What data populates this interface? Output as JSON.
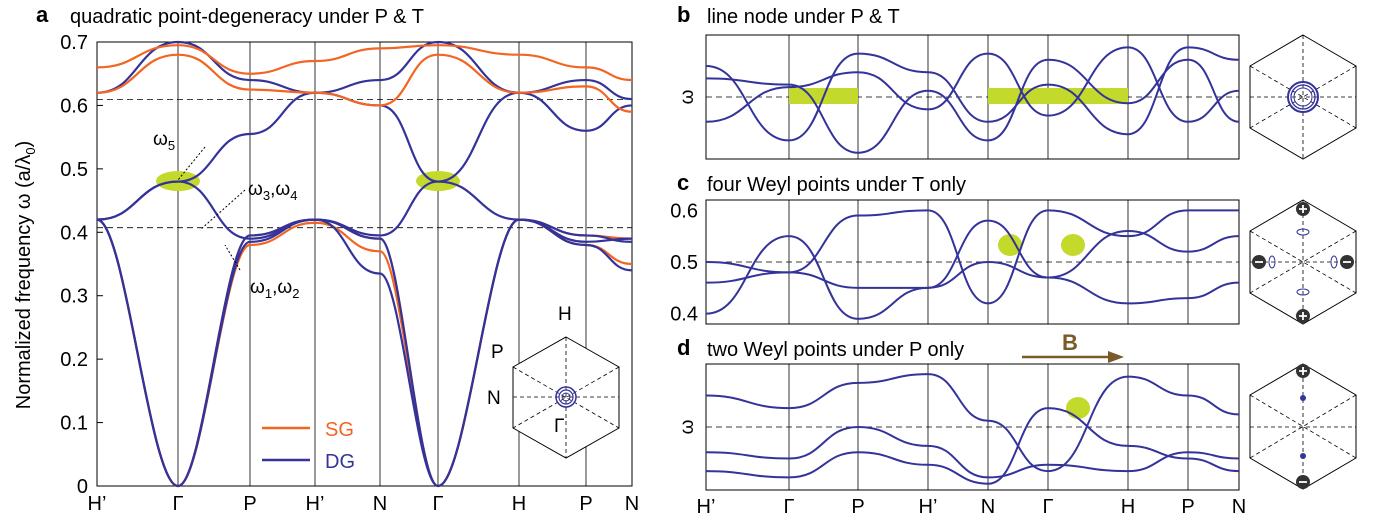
{
  "colors": {
    "sg": "#f26522",
    "dg": "#33339a",
    "highlight": "#c3d92b",
    "arrow": "#7a5a28"
  },
  "labels": {
    "a": "a",
    "b": "b",
    "c": "c",
    "d": "d",
    "title_a": "quadratic point-degeneracy under P & T",
    "title_b": "line node under P & T",
    "title_c": "four Weyl points under T only",
    "title_d": "two Weyl points under P only",
    "ylabel_a": "Normalized frequency ω (a/λ",
    "ylabel_a_sub": "0",
    "ylabel_a_close": ")",
    "omega": "ω",
    "omega5": "ω",
    "omega5_sub": "5",
    "omega34_a": "ω",
    "omega34_sub1": "3",
    "omega34_comma": ",ω",
    "omega34_sub2": "4",
    "omega12_a": "ω",
    "omega12_sub1": "1",
    "omega12_comma": ",ω",
    "omega12_sub2": "2",
    "legend_sg": "SG",
    "legend_dg": "DG",
    "bz_H": "H",
    "bz_P": "P",
    "bz_N": "N",
    "bz_G": "Γ",
    "B": "B"
  },
  "chart_data": [
    {
      "panel": "a",
      "type": "line",
      "title": "quadratic point-degeneracy under P & T",
      "ylabel": "Normalized frequency ω (a/λ0)",
      "ylim": [
        0,
        0.7
      ],
      "yticks": [
        "0",
        "0.1",
        "0.2",
        "0.3",
        "0.4",
        "0.5",
        "0.6",
        "0.7"
      ],
      "kpath": [
        "H’",
        "Γ",
        "P",
        "H’",
        "N",
        "Γ",
        "H",
        "P",
        "N"
      ],
      "reference_lines": [
        0.4,
        0.6
      ],
      "legend": [
        "SG",
        "DG"
      ],
      "series": [
        {
          "name": "SG",
          "values": [
            0.42,
            0,
            0.38,
            0.415,
            0.37,
            0,
            0.42,
            0.38,
            0.35
          ]
        },
        {
          "name": "SG",
          "values": [
            0.42,
            0,
            0.395,
            0.42,
            0.39,
            0,
            0.42,
            0.395,
            0.39
          ]
        },
        {
          "name": "DG",
          "values": [
            0.42,
            0,
            0.385,
            0.42,
            0.335,
            0,
            0.42,
            0.38,
            0.34
          ]
        },
        {
          "name": "DG",
          "values": [
            0.42,
            0,
            0.395,
            0.42,
            0.39,
            0,
            0.42,
            0.395,
            0.385
          ]
        },
        {
          "name": "DG",
          "values": [
            0.42,
            0.48,
            0.39,
            0.42,
            0.395,
            0.48,
            0.42,
            0.385,
            0.39
          ]
        },
        {
          "name": "DG",
          "values": [
            0.42,
            0.48,
            0.555,
            0.62,
            0.6,
            0.48,
            0.62,
            0.56,
            0.6
          ]
        },
        {
          "name": "DG",
          "values": [
            0.62,
            0.7,
            0.64,
            0.62,
            0.64,
            0.7,
            0.62,
            0.64,
            0.61
          ]
        },
        {
          "name": "SG",
          "values": [
            0.62,
            0.68,
            0.625,
            0.62,
            0.6,
            0.68,
            0.62,
            0.63,
            0.59
          ]
        },
        {
          "name": "SG",
          "values": [
            0.66,
            0.695,
            0.65,
            0.67,
            0.69,
            0.695,
            0.68,
            0.66,
            0.64
          ]
        }
      ],
      "annotations": [
        "ω5",
        "ω3,ω4",
        "ω1,ω2"
      ]
    },
    {
      "panel": "b",
      "type": "line",
      "title": "line node under P & T",
      "ylabel": "ω",
      "kpath": [
        "H’",
        "Γ",
        "P",
        "H’",
        "N",
        "Γ",
        "H",
        "P",
        "N"
      ],
      "series": [
        {
          "values": [
            0.3,
            0.58,
            0.7,
            0.4,
            0.85,
            0.35,
            0.9,
            0.3,
            0.55
          ]
        },
        {
          "values": [
            0.65,
            0.6,
            0.05,
            0.55,
            0.15,
            0.8,
            0.45,
            0.8,
            0.3
          ]
        },
        {
          "values": [
            0.75,
            0.15,
            0.85,
            0.7,
            0.3,
            0.6,
            0.2,
            0.9,
            0.8
          ]
        }
      ]
    },
    {
      "panel": "c",
      "type": "line",
      "title": "four Weyl points under T only",
      "ylim": [
        0.38,
        0.62
      ],
      "yticks": [
        "0.4",
        "0.5",
        "0.6"
      ],
      "kpath": [
        "H’",
        "Γ",
        "P",
        "H’",
        "N",
        "Γ",
        "H",
        "P",
        "N"
      ],
      "series": [
        {
          "values": [
            0.46,
            0.48,
            0.59,
            0.6,
            0.42,
            0.6,
            0.55,
            0.6,
            0.6
          ]
        },
        {
          "values": [
            0.5,
            0.48,
            0.45,
            0.45,
            0.5,
            0.47,
            0.42,
            0.43,
            0.46
          ]
        },
        {
          "values": [
            0.4,
            0.55,
            0.39,
            0.45,
            0.58,
            0.47,
            0.56,
            0.52,
            0.55
          ]
        }
      ]
    },
    {
      "panel": "d",
      "type": "line",
      "title": "two Weyl points under P only",
      "ylabel": "ω",
      "kpath": [
        "H’",
        "Γ",
        "P",
        "H’",
        "N",
        "Γ",
        "H",
        "P",
        "N"
      ],
      "series": [
        {
          "values": [
            0.75,
            0.65,
            0.85,
            0.92,
            0.55,
            0.15,
            0.9,
            0.75,
            0.6
          ]
        },
        {
          "values": [
            0.3,
            0.25,
            0.5,
            0.35,
            0.1,
            0.2,
            0.15,
            0.3,
            0.25
          ]
        },
        {
          "values": [
            0.15,
            0.1,
            0.3,
            0.2,
            0.05,
            0.65,
            0.35,
            0.25,
            0.15
          ]
        }
      ]
    }
  ]
}
